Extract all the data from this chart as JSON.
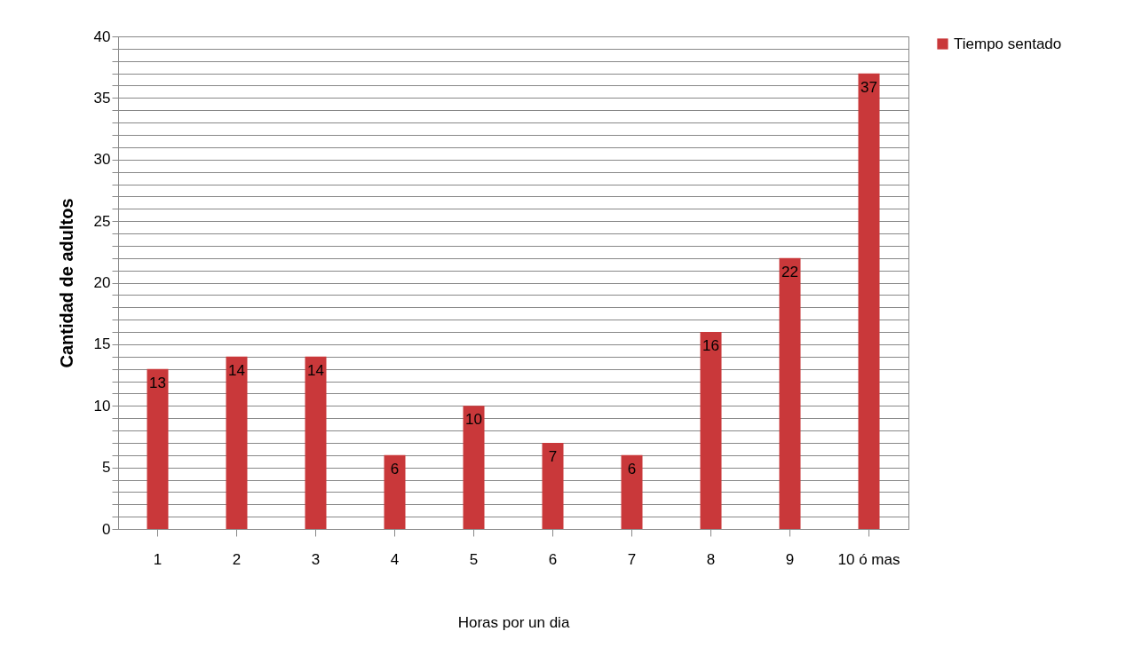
{
  "chart_data": {
    "type": "bar",
    "xlabel": "Horas por un dia",
    "ylabel": "Cantidad de adultos",
    "categories": [
      "1",
      "2",
      "3",
      "4",
      "5",
      "6",
      "7",
      "8",
      "9",
      "10 ó mas"
    ],
    "series": [
      {
        "name": "Tiempo sentado",
        "color": "#c9383a",
        "values": [
          13,
          14,
          14,
          6,
          10,
          7,
          6,
          16,
          22,
          37
        ]
      }
    ],
    "ylim": [
      0,
      40
    ],
    "yticks": [
      0,
      {
        "value": 1,
        "label": null
      },
      {
        "value": 2,
        "label": null
      },
      {
        "value": 3,
        "label": null
      },
      {
        "value": 4,
        "label": null
      },
      5,
      {
        "value": 6,
        "label": null
      },
      {
        "value": 7,
        "label": null
      },
      {
        "value": 8,
        "label": null
      },
      {
        "value": 9,
        "label": null
      },
      10,
      {
        "value": 11,
        "label": null
      },
      {
        "value": 12,
        "label": null
      },
      {
        "value": 13,
        "label": null
      },
      {
        "value": 14,
        "label": null
      },
      15,
      {
        "value": 16,
        "label": null
      },
      {
        "value": 17,
        "label": null
      },
      {
        "value": 18,
        "label": null
      },
      {
        "value": 19,
        "label": null
      },
      20,
      {
        "value": 21,
        "label": null
      },
      {
        "value": 22,
        "label": null
      },
      {
        "value": 23,
        "label": null
      },
      {
        "value": 24,
        "label": null
      },
      25,
      {
        "value": 26,
        "label": null
      },
      {
        "value": 27,
        "label": null
      },
      {
        "value": 28,
        "label": null
      },
      {
        "value": 29,
        "label": null
      },
      30,
      {
        "value": 31,
        "label": null
      },
      {
        "value": 32,
        "label": null
      },
      {
        "value": 33,
        "label": null
      },
      {
        "value": 34,
        "label": null
      },
      35,
      {
        "value": 36,
        "label": null
      },
      {
        "value": 37,
        "label": null
      },
      {
        "value": 38,
        "label": null
      },
      {
        "value": 39,
        "label": null
      },
      40
    ],
    "grid": "y",
    "legend": "right",
    "data_labels": true
  }
}
